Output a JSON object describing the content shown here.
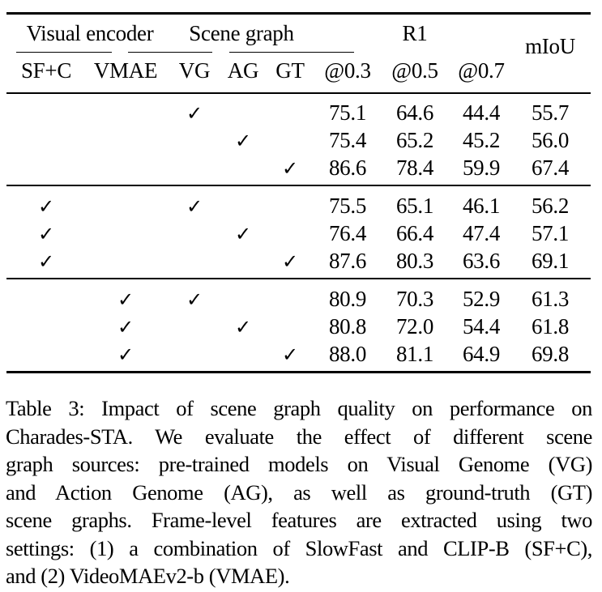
{
  "table": {
    "group_headers": [
      {
        "label": "Visual encoder",
        "spans": [
          "SF+C",
          "VMAE"
        ]
      },
      {
        "label": "Scene graph",
        "spans": [
          "VG",
          "AG",
          "GT"
        ]
      },
      {
        "label": "R1",
        "spans": [
          "@0.3",
          "@0.5",
          "@0.7"
        ]
      },
      {
        "label": "mIoU",
        "spans": []
      }
    ],
    "columns": [
      "SF+C",
      "VMAE",
      "VG",
      "AG",
      "GT",
      "@0.3",
      "@0.5",
      "@0.7",
      "mIoU"
    ],
    "check_symbol": "✓",
    "groups": [
      {
        "rows": [
          {
            "sfc": false,
            "vmae": false,
            "vg": true,
            "ag": false,
            "gt": false,
            "r03": "75.1",
            "r05": "64.6",
            "r07": "44.4",
            "miou": "55.7"
          },
          {
            "sfc": false,
            "vmae": false,
            "vg": false,
            "ag": true,
            "gt": false,
            "r03": "75.4",
            "r05": "65.2",
            "r07": "45.2",
            "miou": "56.0"
          },
          {
            "sfc": false,
            "vmae": false,
            "vg": false,
            "ag": false,
            "gt": true,
            "r03": "86.6",
            "r05": "78.4",
            "r07": "59.9",
            "miou": "67.4"
          }
        ]
      },
      {
        "rows": [
          {
            "sfc": true,
            "vmae": false,
            "vg": true,
            "ag": false,
            "gt": false,
            "r03": "75.5",
            "r05": "65.1",
            "r07": "46.1",
            "miou": "56.2"
          },
          {
            "sfc": true,
            "vmae": false,
            "vg": false,
            "ag": true,
            "gt": false,
            "r03": "76.4",
            "r05": "66.4",
            "r07": "47.4",
            "miou": "57.1"
          },
          {
            "sfc": true,
            "vmae": false,
            "vg": false,
            "ag": false,
            "gt": true,
            "r03": "87.6",
            "r05": "80.3",
            "r07": "63.6",
            "miou": "69.1"
          }
        ]
      },
      {
        "rows": [
          {
            "sfc": false,
            "vmae": true,
            "vg": true,
            "ag": false,
            "gt": false,
            "r03": "80.9",
            "r05": "70.3",
            "r07": "52.9",
            "miou": "61.3"
          },
          {
            "sfc": false,
            "vmae": true,
            "vg": false,
            "ag": true,
            "gt": false,
            "r03": "80.8",
            "r05": "72.0",
            "r07": "54.4",
            "miou": "61.8"
          },
          {
            "sfc": false,
            "vmae": true,
            "vg": false,
            "ag": false,
            "gt": true,
            "r03": "88.0",
            "r05": "81.1",
            "r07": "64.9",
            "miou": "69.8"
          }
        ]
      }
    ]
  },
  "caption": {
    "lines": [
      "Table 3: Impact of scene graph quality on performance on",
      "Charades-STA. We evaluate the effect of different scene",
      "graph sources: pre-trained models on Visual Genome (VG)",
      "and Action Genome (AG), as well as ground-truth (GT)",
      "scene graphs. Frame-level features are extracted using two",
      "settings: (1) a combination of SlowFast and CLIP-B (SF+C),",
      "and (2) VideoMAEv2-b (VMAE)."
    ]
  }
}
